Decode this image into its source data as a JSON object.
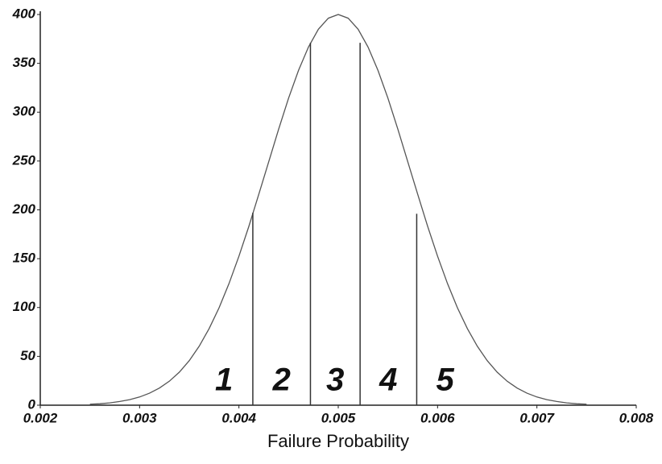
{
  "chart_data": {
    "type": "line",
    "x_label": "Failure Probability",
    "x": [
      0.0025,
      0.0026,
      0.0027,
      0.0028,
      0.0029,
      0.003,
      0.0031,
      0.0032,
      0.0033,
      0.0034,
      0.0035,
      0.0036,
      0.0037,
      0.0038,
      0.0039,
      0.004,
      0.0041,
      0.0042,
      0.0043,
      0.0044,
      0.0045,
      0.0046,
      0.0047,
      0.0048,
      0.0049,
      0.005,
      0.0051,
      0.0052,
      0.0053,
      0.0054,
      0.0055,
      0.0056,
      0.0057,
      0.0058,
      0.0059,
      0.006,
      0.0061,
      0.0062,
      0.0063,
      0.0064,
      0.0065,
      0.0066,
      0.0067,
      0.0068,
      0.0069,
      0.007,
      0.0071,
      0.0072,
      0.0073,
      0.0074,
      0.0075
    ],
    "series": [
      {
        "color": "#555555",
        "values": [
          1.0,
          1.5,
          2.4,
          3.8,
          5.7,
          8.4,
          12.3,
          17.6,
          24.6,
          33.8,
          45.6,
          60.4,
          78.4,
          99.7,
          124.5,
          152.5,
          183.1,
          215.9,
          249.2,
          282.6,
          314.4,
          342.8,
          366.7,
          384.9,
          396.2,
          400,
          396.2,
          384.9,
          366.7,
          342.8,
          314.4,
          282.6,
          249.2,
          215.9,
          183.1,
          152.5,
          124.5,
          99.7,
          78.4,
          60.4,
          45.6,
          33.8,
          24.6,
          17.6,
          12.3,
          8.4,
          5.7,
          3.8,
          2.4,
          1.5,
          1.0
        ]
      }
    ],
    "dividers": {
      "x": [
        0.00414,
        0.00472,
        0.00522,
        0.00579
      ],
      "values": [
        197,
        371,
        371,
        196
      ],
      "color": "#333333"
    },
    "regions": [
      "1",
      "2",
      "3",
      "4",
      "5"
    ],
    "xlim": [
      0.002,
      0.008
    ],
    "xticks": [
      0.002,
      0.003,
      0.004,
      0.005,
      0.006,
      0.007,
      0.008
    ],
    "ylim": [
      0,
      400
    ],
    "yticks": [
      0,
      50,
      100,
      150,
      200,
      250,
      300,
      350,
      400
    ],
    "grid": false
  }
}
